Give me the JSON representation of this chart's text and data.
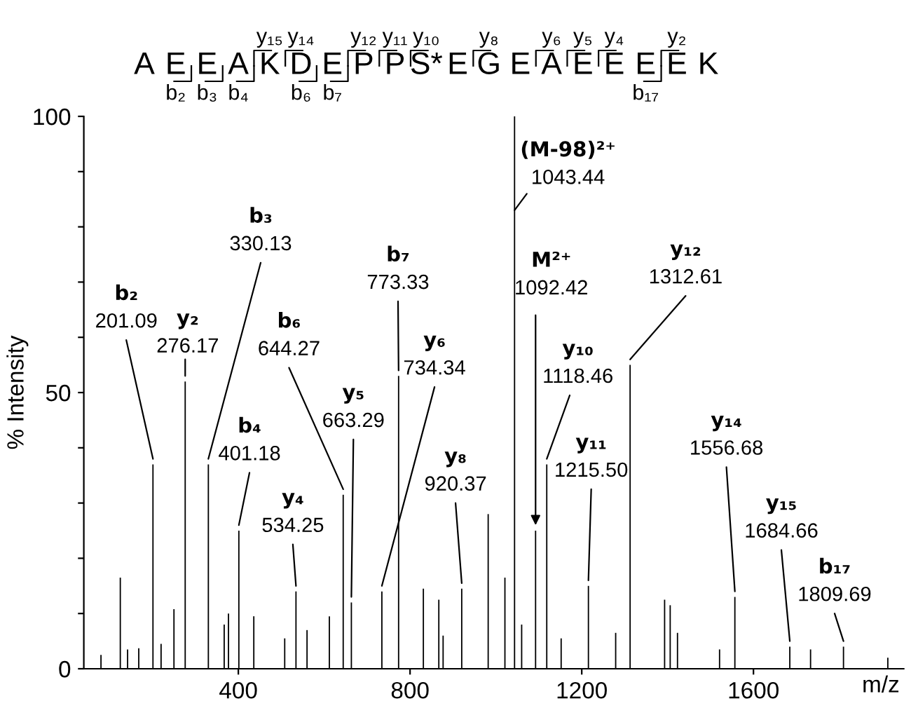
{
  "chart_data": {
    "type": "bar",
    "xlabel": "m/z",
    "ylabel": "% Intensity",
    "color": "#000000",
    "x": [
      80,
      125,
      142,
      168,
      201.09,
      220,
      250,
      276.17,
      330.13,
      367,
      377,
      401.18,
      436,
      508,
      534.25,
      560,
      612,
      644.27,
      663.29,
      734.34,
      773.33,
      831,
      867,
      877,
      920.37,
      982,
      1021,
      1043.44,
      1060,
      1092.42,
      1118.46,
      1152,
      1215.5,
      1279,
      1312.61,
      1393,
      1406,
      1423,
      1521,
      1556.68,
      1684.66,
      1733,
      1809.69,
      1913
    ],
    "values": [
      2.5,
      16.5,
      3.5,
      3.7,
      37,
      4.5,
      10.8,
      52,
      37,
      8,
      10,
      25,
      9.5,
      5.5,
      14,
      7,
      9.5,
      31.5,
      12,
      14,
      53,
      14.5,
      12.5,
      6,
      14.5,
      28,
      16.5,
      100,
      8,
      25,
      37,
      5.5,
      15,
      6.5,
      55,
      12.5,
      11.5,
      6.5,
      3.5,
      13,
      4,
      3.5,
      4,
      2
    ],
    "xlim": [
      40,
      1950
    ],
    "xticks": [
      400,
      800,
      1200,
      1600
    ],
    "ylim": [
      0,
      100
    ],
    "yticks": [
      0,
      {
        "value": 10,
        "label": null
      },
      {
        "value": 20,
        "label": null
      },
      {
        "value": 30,
        "label": null
      },
      {
        "value": 40,
        "label": null
      },
      50,
      {
        "value": 60,
        "label": null
      },
      {
        "value": 70,
        "label": null
      },
      {
        "value": 80,
        "label": null
      },
      {
        "value": 90,
        "label": null
      },
      100
    ],
    "grid": false,
    "legend": false,
    "annotations": [
      "A E E A K D E P P S* E G E A E E E E K",
      "y₁₅",
      "y₁₄",
      "y₁₂",
      "y₁₁",
      "y₁₀",
      "y₈",
      "y₆",
      "y₅",
      "y₄",
      "y₂",
      "b₂",
      "b₃",
      "b₄",
      "b₆",
      "b₇",
      "b₁₇",
      {
        "text": "b₂\n201.09",
        "x": 201.09,
        "y": 37
      },
      {
        "text": "y₂\n276.17",
        "x": 276.17,
        "y": 52
      },
      {
        "text": "b₃\n330.13",
        "x": 330.13,
        "y": 37
      },
      {
        "text": "b₄\n401.18",
        "x": 401.18,
        "y": 25
      },
      {
        "text": "y₄\n534.25",
        "x": 534.25,
        "y": 14
      },
      {
        "text": "b₆\n644.27",
        "x": 644.27,
        "y": 31.5
      },
      {
        "text": "y₅\n663.29",
        "x": 663.29,
        "y": 12
      },
      {
        "text": "b₇\n773.33",
        "x": 773.33,
        "y": 53
      },
      {
        "text": "y₆\n734.34",
        "x": 734.34,
        "y": 14
      },
      {
        "text": "y₈\n920.37",
        "x": 920.37,
        "y": 14.5
      },
      {
        "text": "(M-98)²⁺\n1043.44",
        "x": 1043.44,
        "y": 83
      },
      {
        "text": "M²⁺\n1092.42",
        "x": 1092.42,
        "y": 25
      },
      {
        "text": "y₁₀\n1118.46",
        "x": 1118.46,
        "y": 37
      },
      {
        "text": "y₁₁\n1215.50",
        "x": 1215.5,
        "y": 15
      },
      {
        "text": "y₁₂\n1312.61",
        "x": 1312.61,
        "y": 55
      },
      {
        "text": "y₁₄\n1556.68",
        "x": 1556.68,
        "y": 13
      },
      {
        "text": "y₁₅\n1684.66",
        "x": 1684.66,
        "y": 4
      },
      {
        "text": "b₁₇\n1809.69",
        "x": 1809.69,
        "y": 4
      }
    ]
  }
}
